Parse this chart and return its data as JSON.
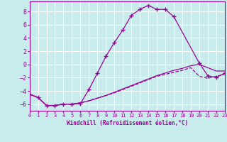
{
  "xlabel": "Windchill (Refroidissement éolien,°C)",
  "background_color": "#c8ecec",
  "line_color": "#990099",
  "grid_color": "#ffffff",
  "xlim": [
    0,
    23
  ],
  "ylim": [
    -7,
    9.5
  ],
  "yticks": [
    -6,
    -4,
    -2,
    0,
    2,
    4,
    6,
    8
  ],
  "xticks": [
    0,
    1,
    2,
    3,
    4,
    5,
    6,
    7,
    8,
    9,
    10,
    11,
    12,
    13,
    14,
    15,
    16,
    17,
    18,
    19,
    20,
    21,
    22,
    23
  ],
  "curve1_x": [
    0,
    1,
    2,
    3,
    4,
    5,
    6,
    7,
    8,
    9,
    10,
    11,
    12,
    13,
    14,
    15,
    16,
    17,
    20,
    21,
    22,
    23
  ],
  "curve1_y": [
    -4.5,
    -5.0,
    -6.2,
    -6.2,
    -6.0,
    -6.0,
    -5.9,
    -3.8,
    -1.3,
    1.2,
    3.3,
    5.2,
    7.4,
    8.3,
    8.9,
    8.3,
    8.3,
    7.2,
    0.2,
    -1.7,
    -2.0,
    -1.3
  ],
  "curve2_x": [
    0,
    1,
    2,
    3,
    4,
    5,
    6,
    7,
    8,
    9,
    10,
    11,
    12,
    13,
    14,
    15,
    16,
    17,
    18,
    19,
    20,
    21,
    22,
    23
  ],
  "curve2_y": [
    -4.5,
    -5.0,
    -6.2,
    -6.2,
    -6.0,
    -6.0,
    -5.8,
    -5.5,
    -5.1,
    -4.7,
    -4.2,
    -3.7,
    -3.2,
    -2.7,
    -2.2,
    -1.7,
    -1.3,
    -0.9,
    -0.6,
    -0.2,
    0.0,
    -0.5,
    -1.0,
    -1.0
  ],
  "curve3_x": [
    0,
    1,
    2,
    3,
    4,
    5,
    6,
    7,
    8,
    9,
    10,
    11,
    12,
    13,
    14,
    15,
    16,
    17,
    18,
    19,
    20,
    21,
    22,
    23
  ],
  "curve3_y": [
    -4.5,
    -5.0,
    -6.2,
    -6.2,
    -6.0,
    -6.0,
    -5.8,
    -5.5,
    -5.1,
    -4.7,
    -4.3,
    -3.8,
    -3.3,
    -2.8,
    -2.3,
    -1.8,
    -1.5,
    -1.2,
    -0.9,
    -0.5,
    -1.8,
    -2.1,
    -1.8,
    -1.5
  ]
}
